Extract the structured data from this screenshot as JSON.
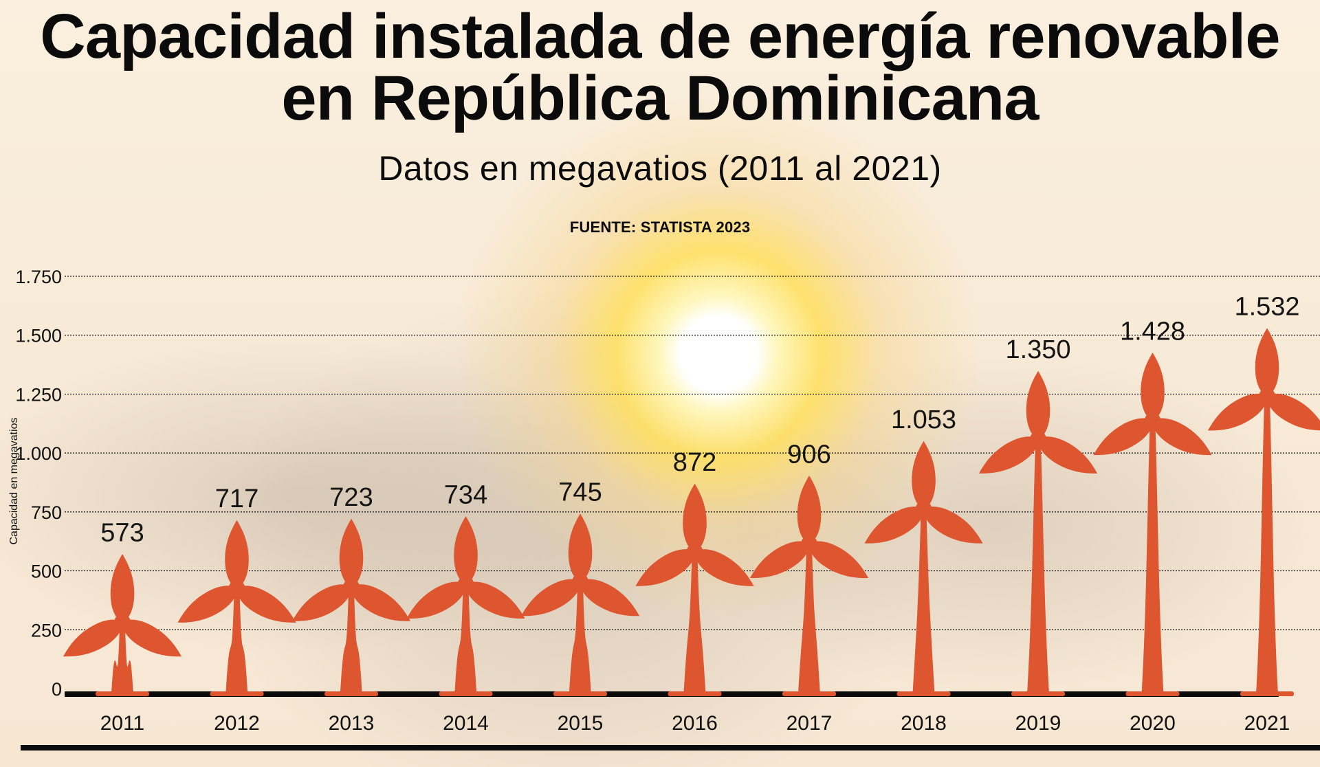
{
  "chart_data": {
    "type": "bar",
    "title": "Capacidad instalada de energía renovable en República Dominicana",
    "subtitle": "Datos en megavatios (2011 al 2021)",
    "source": "FUENTE: STATISTA 2023",
    "xlabel": "",
    "ylabel": "Capacidad en megavatios",
    "categories": [
      "2011",
      "2012",
      "2013",
      "2014",
      "2015",
      "2016",
      "2017",
      "2018",
      "2019",
      "2020",
      "2021"
    ],
    "values": [
      573,
      717,
      723,
      734,
      745,
      872,
      906,
      1053,
      1350,
      1428,
      1532
    ],
    "data_labels": [
      "573",
      "717",
      "723",
      "734",
      "745",
      "872",
      "906",
      "1.053",
      "1.350",
      "1.428",
      "1.532"
    ],
    "ylim": [
      0,
      1750
    ],
    "yticks": [
      0,
      250,
      500,
      750,
      1000,
      1250,
      1500,
      1750
    ],
    "ytick_labels": [
      "0",
      "250",
      "500",
      "750",
      "1.000",
      "1.250",
      "1.500",
      "1.750"
    ],
    "grid": true
  },
  "colors": {
    "turbine": "#dd5630",
    "text": "#0b0b0b",
    "background": "#f8edd9",
    "sun": "#ffd95b"
  }
}
